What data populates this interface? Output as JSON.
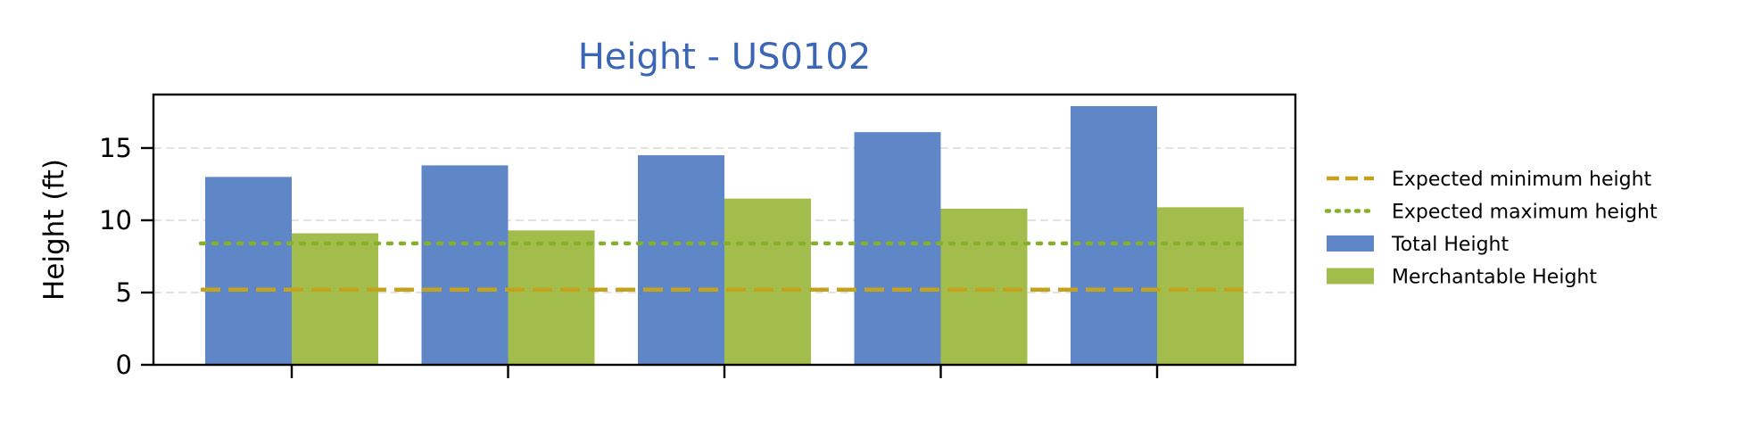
{
  "chart_data": {
    "type": "bar",
    "title": "Height - US0102",
    "xlabel": "",
    "ylabel": "Height (ft)",
    "ylim": [
      0,
      18.7
    ],
    "yticks": [
      0,
      5,
      10,
      15
    ],
    "categories": [
      "",
      "",
      "",
      "",
      ""
    ],
    "grid": "horizontal dashed",
    "legend_position": "right",
    "series": [
      {
        "name": "Total Height",
        "color": "#5f87c8",
        "values": [
          13.0,
          13.8,
          14.5,
          16.1,
          17.9
        ]
      },
      {
        "name": "Merchantable Height",
        "color": "#a3bd4c",
        "values": [
          9.1,
          9.3,
          11.5,
          10.8,
          10.9
        ]
      }
    ],
    "reference_lines": [
      {
        "name": "Expected minimum height",
        "value": 5.2,
        "style": "dashed",
        "color": "#c4a31c"
      },
      {
        "name": "Expected maximum height",
        "value": 8.4,
        "style": "dotted",
        "color": "#86b02a"
      }
    ]
  }
}
